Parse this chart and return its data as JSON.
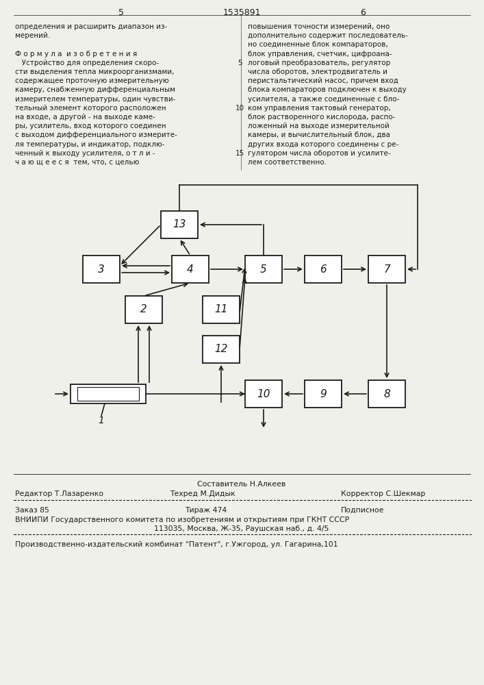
{
  "page_number_left": "5",
  "page_number_center": "1535891",
  "page_number_right": "6",
  "col_left_text": [
    "определения и расширить диапазон из-",
    "мерений.",
    "",
    "Ф о р м у л а  и з о б р е т е н и я",
    "   Устройство для определения скоро-",
    "сти выделения тепла микроорганизмами,",
    "содержащее проточную измерительную",
    "камеру, снабженную дифференциальным",
    "измерителем температуры, один чувстви-",
    "тельный элемент которого расположен",
    "на входе, а другой - на выходе каме-",
    "ры, усилитель, вход которого соединен",
    "с выходом дифференциального измерите-",
    "ля температуры, и индикатор, подклю-",
    "ченный к выходу усилителя, о т л и -",
    "ч а ю щ е е с я  тем, что, с целью"
  ],
  "col_right_text": [
    "повышения точности измерений, оно",
    "дополнительно содержит последователь-",
    "но соединенные блок компараторов,",
    "блок управления, счетчик, цифроана-",
    "логовый преобразователь, регулятор",
    "числа оборотов, электродвигатель и",
    "перистальтический насос, причем вход",
    "блока компараторов подключен к выходу",
    "усилителя, а также соединенные с бло-",
    "ком управления тактовый генератор,",
    "блок растворенного кислорода, распо-",
    "ложенный на выходе измерительной",
    "камеры, и вычислительный блок, два",
    "других входа которого соединены с ре-",
    "гулятором числа оборотов и усилите-",
    "лем соответственно."
  ],
  "footer_composer": "Составитель Н.Алкеев",
  "footer_editor": "Редактор Т.Лазаренко",
  "footer_techred": "Техред М.Дидык",
  "footer_corrector": "Корректор С.Шекмар",
  "footer_order": "Заказ 85",
  "footer_tirazh": "Тираж 474",
  "footer_podpisnoe": "Подписное",
  "footer_vniiipi": "ВНИИПИ Государственного комитета по изобретениям и открытиям при ГКНТ СССР",
  "footer_address": "113035, Москва, Ж-35, Раушская наб., д. 4/5",
  "footer_plant": "Производственно-издательский комбинат \"Патент\", г.Ужгород, ул. Гагарина,101",
  "bg_color": "#f0f0eb",
  "text_color": "#1a1a1a"
}
